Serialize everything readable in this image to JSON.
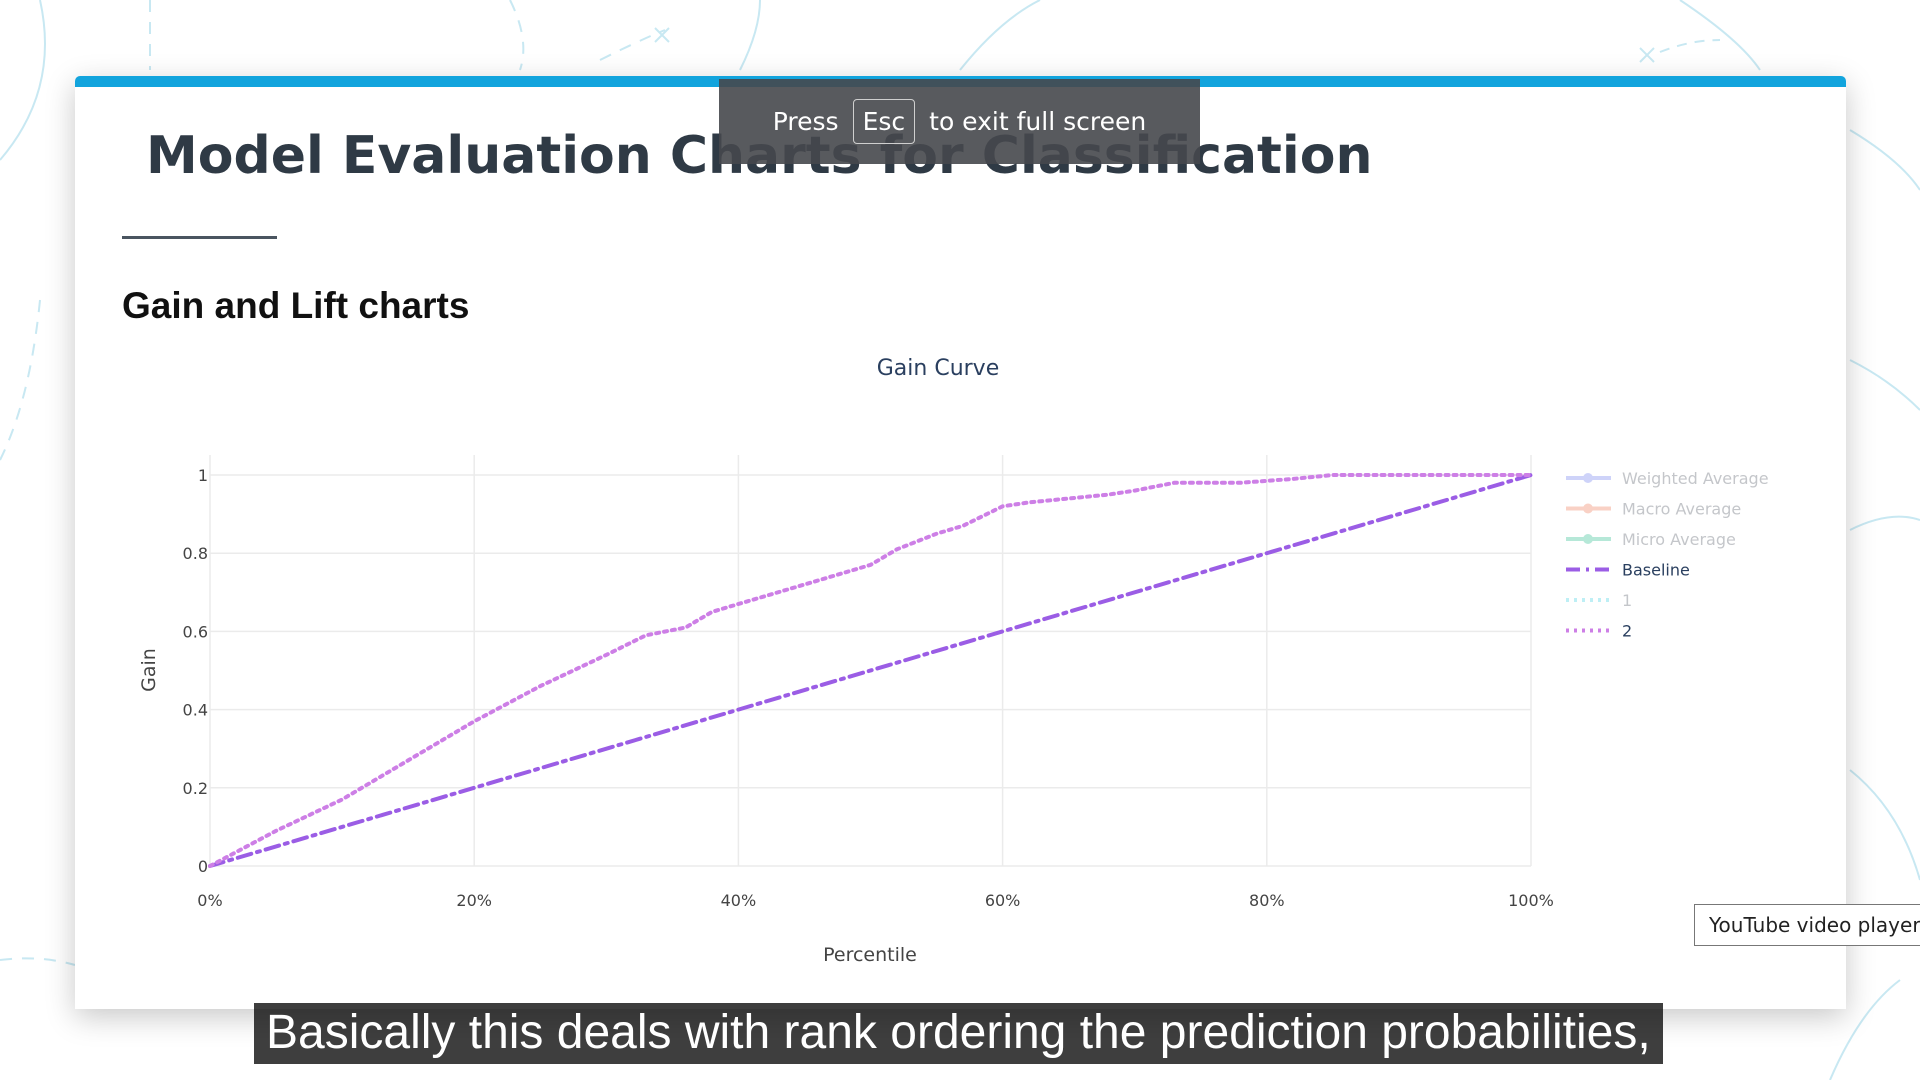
{
  "slide": {
    "title": "Model Evaluation Charts for Classification",
    "section_heading": "Gain and Lift charts",
    "accent_color": "#12a4dd"
  },
  "fullscreen_notice": {
    "before": "Press",
    "key": "Esc",
    "after": "to exit full screen"
  },
  "tooltip": "YouTube video player",
  "caption": "Basically this deals with rank ordering the prediction probabilities,",
  "chart_data": {
    "type": "line",
    "title": "Gain Curve",
    "xlabel": "Percentile",
    "ylabel": "Gain",
    "xlim": [
      0,
      1
    ],
    "ylim": [
      0,
      1
    ],
    "x_tick_values": [
      0,
      0.2,
      0.4,
      0.6,
      0.8,
      1
    ],
    "x_ticks": [
      "0%",
      "20%",
      "40%",
      "60%",
      "80%",
      "100%"
    ],
    "y_tick_values": [
      0,
      0.2,
      0.4,
      0.6,
      0.8,
      1
    ],
    "y_ticks": [
      "0",
      "0.2",
      "0.4",
      "0.6",
      "0.8",
      "1"
    ],
    "grid": true,
    "legend_position": "right",
    "series": [
      {
        "name": "Weighted Average",
        "color": "#9fa8f5",
        "style": "solid-marker",
        "visible": false,
        "x": [],
        "y": []
      },
      {
        "name": "Macro Average",
        "color": "#f4a58c",
        "style": "solid-marker",
        "visible": false,
        "x": [],
        "y": []
      },
      {
        "name": "Micro Average",
        "color": "#6fd3b3",
        "style": "solid-marker",
        "visible": false,
        "x": [],
        "y": []
      },
      {
        "name": "Baseline",
        "color": "#9b5de5",
        "style": "dashdot",
        "visible": true,
        "x": [
          0,
          1
        ],
        "y": [
          0,
          1
        ]
      },
      {
        "name": "1",
        "color": "#7fe0ec",
        "style": "dot",
        "visible": false,
        "x": [],
        "y": []
      },
      {
        "name": "2",
        "color": "#cd7fe6",
        "style": "dot",
        "visible": true,
        "x": [
          0,
          0.05,
          0.1,
          0.15,
          0.2,
          0.25,
          0.3,
          0.33,
          0.36,
          0.38,
          0.4,
          0.45,
          0.5,
          0.52,
          0.55,
          0.57,
          0.6,
          0.62,
          0.65,
          0.68,
          0.7,
          0.73,
          0.78,
          0.82,
          0.85,
          0.9,
          0.95,
          1.0
        ],
        "y": [
          0,
          0.09,
          0.17,
          0.27,
          0.37,
          0.46,
          0.54,
          0.59,
          0.61,
          0.65,
          0.67,
          0.72,
          0.77,
          0.81,
          0.85,
          0.87,
          0.92,
          0.93,
          0.94,
          0.95,
          0.96,
          0.98,
          0.98,
          0.99,
          1.0,
          1.0,
          1.0,
          1.0
        ]
      }
    ]
  }
}
